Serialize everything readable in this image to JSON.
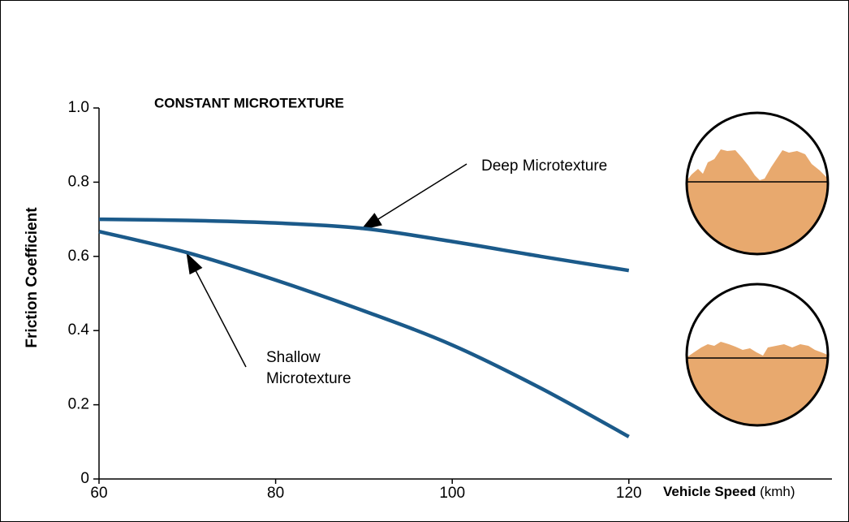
{
  "chart_data": {
    "type": "line",
    "title": "CONSTANT MICROTEXTURE",
    "y_label": "Friction Coefficient",
    "x_label": "Vehicle Speed",
    "x_label_unit": "(kmh)",
    "x": [
      60,
      70,
      80,
      90,
      100,
      110,
      120
    ],
    "series": [
      {
        "name": "Deep Microtexture",
        "color": "#1b5a8a",
        "values": [
          0.7,
          0.697,
          0.69,
          0.675,
          0.64,
          0.6,
          0.562
        ]
      },
      {
        "name": [
          "Shallow",
          "Microtexture"
        ],
        "color": "#1b5a8a",
        "values": [
          0.667,
          0.61,
          0.536,
          0.453,
          0.361,
          0.245,
          0.114
        ]
      }
    ],
    "xlim": [
      60,
      143
    ],
    "xticks": [
      60,
      80,
      100,
      120
    ],
    "ylim": [
      0,
      1
    ],
    "yticks": [
      {
        "value": 1,
        "label": "1.0"
      },
      0.8,
      0.6,
      0.4,
      0.2,
      0
    ]
  }
}
